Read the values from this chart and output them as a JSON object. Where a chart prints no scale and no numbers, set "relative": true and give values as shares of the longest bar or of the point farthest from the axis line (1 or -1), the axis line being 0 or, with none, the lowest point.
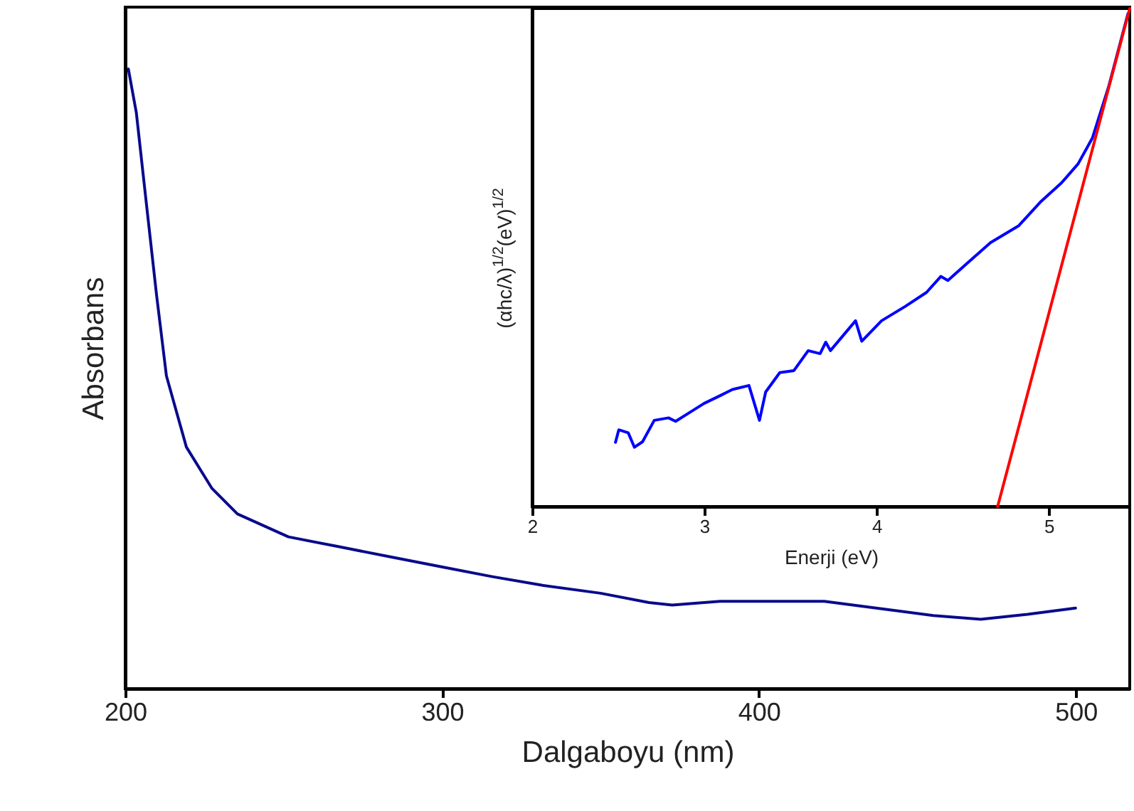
{
  "chart_data": [
    {
      "type": "line",
      "xlabel": "Dalgaboyu (nm)",
      "ylabel": "Absorbans",
      "relative": true,
      "xlim": [
        200,
        517
      ],
      "xticks": [
        200,
        300,
        400,
        500
      ],
      "grid": false,
      "x": [
        201,
        203.5,
        206.7,
        209.9,
        213,
        219.3,
        227.4,
        235.4,
        251.5,
        267.5,
        283.4,
        299.5,
        315.6,
        331.4,
        350,
        365.3,
        372.6,
        387.7,
        420.6,
        440,
        455,
        470,
        484.8,
        499.9
      ],
      "series": [
        {
          "color": "#0a0a8c",
          "values": [
            1.0,
            0.93,
            0.782,
            0.635,
            0.505,
            0.39,
            0.323,
            0.282,
            0.245,
            0.229,
            0.213,
            0.197,
            0.181,
            0.167,
            0.154,
            0.139,
            0.135,
            0.141,
            0.141,
            0.128,
            0.118,
            0.112,
            0.12,
            0.13
          ]
        }
      ]
    },
    {
      "type": "line",
      "xlabel": "Enerji (eV)",
      "ylabel": "(αhc/λ)$^{1/2}$(eV)$^{1/2}$",
      "relative": true,
      "xlim": [
        2,
        5.47
      ],
      "xticks": [
        2,
        3,
        4,
        5
      ],
      "grid": false,
      "series": [
        {
          "color": "#0000ff",
          "x": [
            2.484,
            2.503,
            2.558,
            2.594,
            2.641,
            2.709,
            2.792,
            2.833,
            2.929,
            2.998,
            3.094,
            3.163,
            3.259,
            3.32,
            3.356,
            3.438,
            3.52,
            3.603,
            3.672,
            3.705,
            3.732,
            3.878,
            3.914,
            4.029,
            4.167,
            4.29,
            4.373,
            4.414,
            4.524,
            4.662,
            4.826,
            4.95,
            5.074,
            5.17,
            5.253,
            5.349,
            5.46
          ],
          "values": [
            0.129,
            0.154,
            0.148,
            0.119,
            0.13,
            0.173,
            0.178,
            0.171,
            0.192,
            0.207,
            0.223,
            0.235,
            0.243,
            0.173,
            0.23,
            0.269,
            0.273,
            0.313,
            0.307,
            0.33,
            0.313,
            0.373,
            0.332,
            0.373,
            0.402,
            0.43,
            0.462,
            0.454,
            0.488,
            0.53,
            0.564,
            0.611,
            0.65,
            0.688,
            0.74,
            0.845,
            0.99
          ]
        },
        {
          "color": "#ff0000",
          "x": [
            4.703,
            5.47
          ],
          "values": [
            0,
            1.0
          ]
        }
      ]
    }
  ]
}
